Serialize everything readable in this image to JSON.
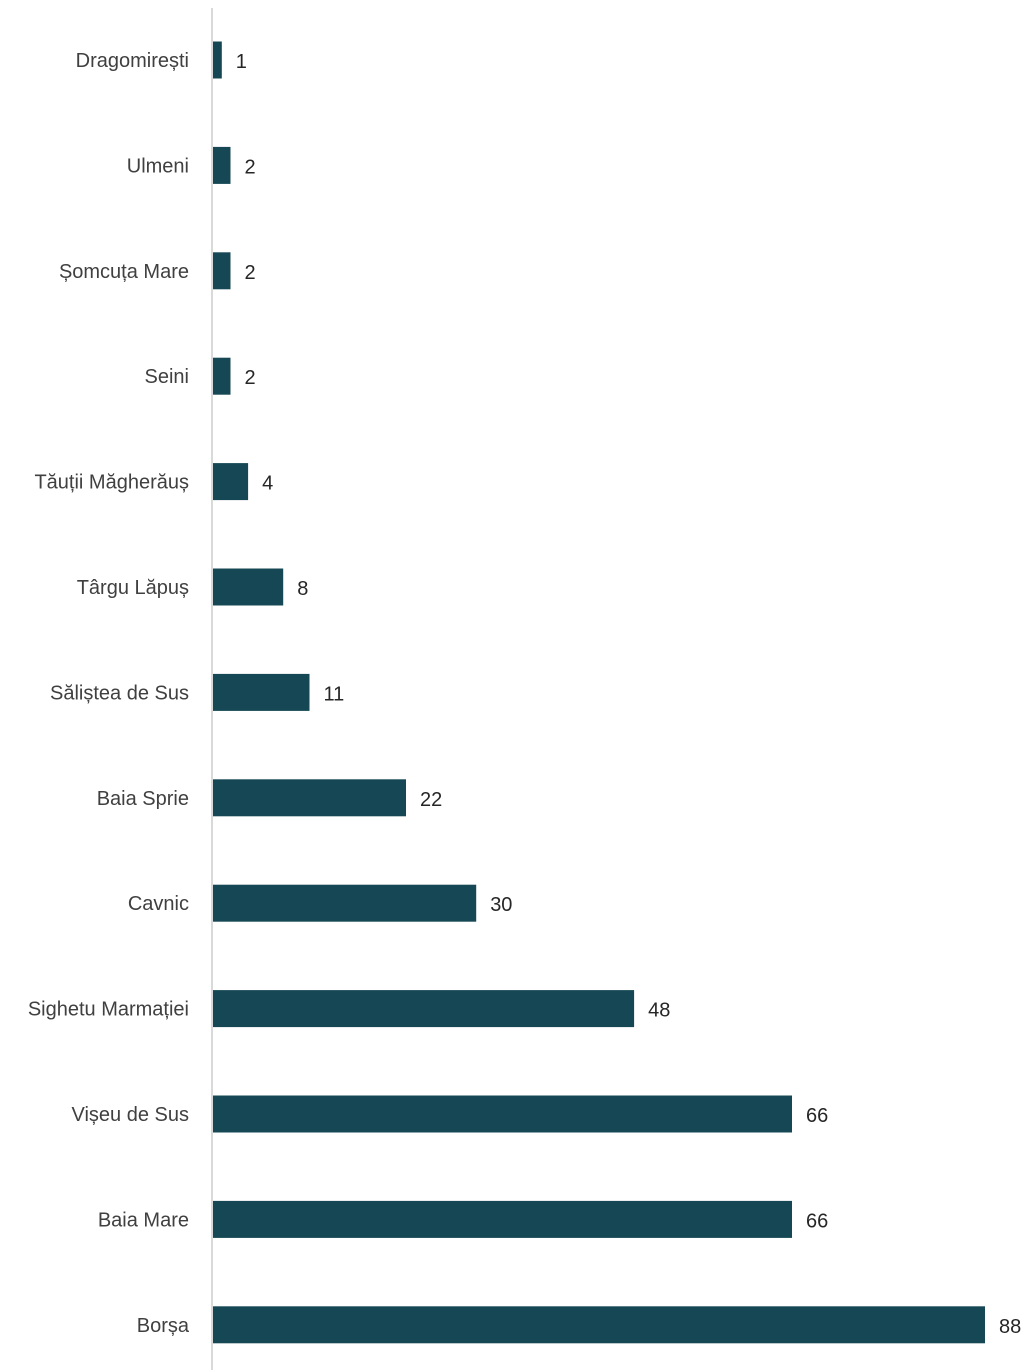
{
  "chart_data": {
    "type": "bar",
    "orientation": "horizontal",
    "title": "",
    "xlabel": "",
    "ylabel": "",
    "categories": [
      "Dragomirești",
      "Ulmeni",
      "Șomcuța Mare",
      "Seini",
      "Tăuții Măgherăuș",
      "Târgu Lăpuș",
      "Săliștea de Sus",
      "Baia Sprie",
      "Cavnic",
      "Sighetu Marmației",
      "Vișeu de Sus",
      "Baia Mare",
      "Borșa"
    ],
    "values": [
      1,
      2,
      2,
      2,
      4,
      8,
      11,
      22,
      30,
      48,
      66,
      66,
      88
    ],
    "xlim": [
      0,
      88
    ],
    "grid": false,
    "legend": "none",
    "data_labels": true,
    "colors": {
      "bar": "#154854",
      "axis": "#d9d9d9",
      "category_text": "#404040",
      "value_text": "#262626"
    }
  }
}
